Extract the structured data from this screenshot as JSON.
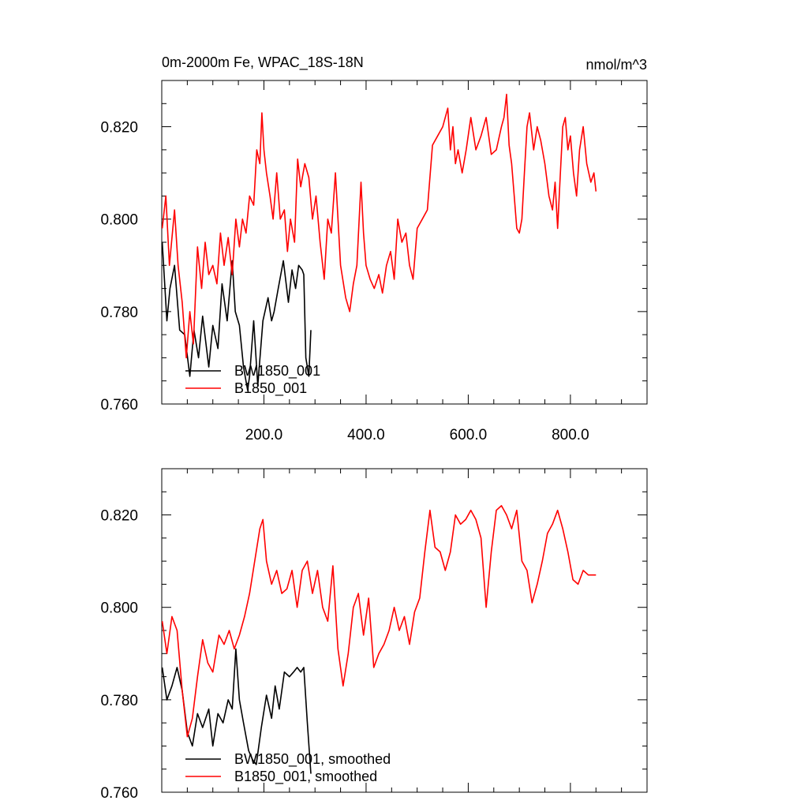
{
  "chart_data": [
    {
      "type": "line",
      "title": "0m-2000m Fe, WPAC_18S-18N",
      "units": "nmol/m^3",
      "xlabel": "",
      "ylabel": "",
      "xlim": [
        0,
        950
      ],
      "ylim": [
        0.76,
        0.83
      ],
      "x_ticks": [
        "200.0",
        "400.0",
        "600.0",
        "800.0"
      ],
      "y_ticks": [
        "0.760",
        "0.780",
        "0.800",
        "0.820"
      ],
      "legend_position": "bottom-left",
      "series": [
        {
          "name": "BW1850_001",
          "color": "#000000",
          "x": [
            1,
            10,
            16,
            25,
            35,
            45,
            55,
            63,
            72,
            80,
            92,
            100,
            110,
            118,
            128,
            138,
            144,
            152,
            160,
            168,
            172,
            180,
            188,
            198,
            208,
            215,
            220,
            228,
            238,
            248,
            255,
            262,
            268,
            275,
            278,
            282,
            288,
            292
          ],
          "y": [
            0.795,
            0.778,
            0.785,
            0.79,
            0.776,
            0.775,
            0.766,
            0.776,
            0.77,
            0.779,
            0.768,
            0.777,
            0.772,
            0.786,
            0.778,
            0.791,
            0.78,
            0.777,
            0.768,
            0.763,
            0.766,
            0.778,
            0.764,
            0.778,
            0.783,
            0.778,
            0.78,
            0.785,
            0.791,
            0.782,
            0.789,
            0.785,
            0.79,
            0.789,
            0.788,
            0.77,
            0.766,
            0.776
          ]
        },
        {
          "name": "B1850_001",
          "color": "#ff0000",
          "x": [
            1,
            8,
            15,
            25,
            32,
            40,
            48,
            55,
            62,
            70,
            78,
            85,
            92,
            100,
            108,
            115,
            122,
            130,
            138,
            145,
            152,
            158,
            165,
            172,
            180,
            186,
            192,
            196,
            200,
            205,
            212,
            218,
            225,
            232,
            240,
            246,
            252,
            260,
            266,
            272,
            280,
            288,
            295,
            302,
            310,
            318,
            325,
            332,
            340,
            350,
            360,
            368,
            375,
            382,
            390,
            395,
            400,
            408,
            416,
            425,
            432,
            440,
            448,
            455,
            462,
            470,
            478,
            485,
            492,
            500,
            510,
            520,
            530,
            540,
            550,
            560,
            565,
            570,
            575,
            580,
            588,
            596,
            605,
            615,
            625,
            635,
            645,
            655,
            665,
            670,
            675,
            680,
            685,
            690,
            695,
            700,
            705,
            710,
            715,
            720,
            728,
            735,
            742,
            750,
            758,
            765,
            770,
            775,
            780,
            785,
            790,
            795,
            800,
            806,
            812,
            818,
            825,
            832,
            840,
            846,
            850
          ],
          "y": [
            0.798,
            0.805,
            0.79,
            0.802,
            0.79,
            0.782,
            0.77,
            0.78,
            0.773,
            0.794,
            0.785,
            0.795,
            0.788,
            0.79,
            0.786,
            0.797,
            0.79,
            0.796,
            0.788,
            0.8,
            0.794,
            0.8,
            0.797,
            0.805,
            0.803,
            0.815,
            0.812,
            0.823,
            0.815,
            0.81,
            0.805,
            0.8,
            0.81,
            0.8,
            0.802,
            0.793,
            0.8,
            0.795,
            0.813,
            0.807,
            0.812,
            0.809,
            0.8,
            0.805,
            0.795,
            0.787,
            0.8,
            0.797,
            0.81,
            0.79,
            0.783,
            0.78,
            0.786,
            0.79,
            0.808,
            0.797,
            0.79,
            0.787,
            0.785,
            0.788,
            0.784,
            0.79,
            0.793,
            0.787,
            0.8,
            0.795,
            0.797,
            0.79,
            0.787,
            0.798,
            0.8,
            0.802,
            0.816,
            0.818,
            0.82,
            0.824,
            0.815,
            0.82,
            0.812,
            0.815,
            0.81,
            0.815,
            0.822,
            0.815,
            0.818,
            0.822,
            0.814,
            0.815,
            0.82,
            0.822,
            0.827,
            0.816,
            0.812,
            0.805,
            0.798,
            0.797,
            0.8,
            0.81,
            0.82,
            0.823,
            0.815,
            0.82,
            0.817,
            0.812,
            0.805,
            0.802,
            0.808,
            0.798,
            0.809,
            0.82,
            0.822,
            0.815,
            0.818,
            0.81,
            0.805,
            0.815,
            0.82,
            0.812,
            0.808,
            0.81,
            0.806
          ]
        }
      ]
    },
    {
      "type": "line",
      "title": "",
      "xlabel": "",
      "ylabel": "",
      "xlim": [
        0,
        950
      ],
      "ylim": [
        0.76,
        0.83
      ],
      "x_ticks": [],
      "y_ticks": [
        "0.760",
        "0.780",
        "0.800",
        "0.820"
      ],
      "legend_position": "bottom-left",
      "series": [
        {
          "name": "BW1850_001, smoothed",
          "color": "#000000",
          "x": [
            1,
            10,
            20,
            30,
            40,
            50,
            60,
            70,
            80,
            92,
            100,
            110,
            120,
            130,
            138,
            145,
            152,
            160,
            170,
            178,
            185,
            195,
            205,
            215,
            222,
            230,
            240,
            250,
            258,
            265,
            272,
            278,
            285,
            292
          ],
          "y": [
            0.787,
            0.78,
            0.783,
            0.787,
            0.782,
            0.773,
            0.77,
            0.777,
            0.774,
            0.778,
            0.77,
            0.777,
            0.775,
            0.78,
            0.778,
            0.791,
            0.78,
            0.775,
            0.769,
            0.767,
            0.766,
            0.774,
            0.781,
            0.776,
            0.783,
            0.778,
            0.786,
            0.785,
            0.786,
            0.787,
            0.786,
            0.787,
            0.775,
            0.764
          ]
        },
        {
          "name": "B1850_001, smoothed",
          "color": "#ff0000",
          "x": [
            1,
            10,
            20,
            30,
            40,
            50,
            60,
            70,
            80,
            90,
            100,
            112,
            122,
            132,
            142,
            152,
            162,
            172,
            182,
            192,
            198,
            205,
            215,
            225,
            235,
            245,
            255,
            265,
            275,
            285,
            295,
            305,
            315,
            325,
            335,
            345,
            355,
            365,
            375,
            385,
            395,
            405,
            415,
            425,
            435,
            445,
            455,
            465,
            475,
            485,
            495,
            505,
            515,
            525,
            535,
            545,
            555,
            565,
            575,
            585,
            595,
            605,
            615,
            625,
            635,
            645,
            655,
            665,
            675,
            685,
            695,
            705,
            715,
            725,
            735,
            745,
            755,
            765,
            775,
            785,
            795,
            805,
            815,
            825,
            835,
            845,
            850
          ],
          "y": [
            0.797,
            0.79,
            0.798,
            0.795,
            0.782,
            0.772,
            0.776,
            0.785,
            0.793,
            0.788,
            0.786,
            0.794,
            0.792,
            0.795,
            0.791,
            0.794,
            0.798,
            0.803,
            0.81,
            0.817,
            0.819,
            0.81,
            0.805,
            0.808,
            0.803,
            0.804,
            0.808,
            0.8,
            0.808,
            0.81,
            0.803,
            0.808,
            0.8,
            0.797,
            0.809,
            0.791,
            0.783,
            0.79,
            0.8,
            0.803,
            0.794,
            0.802,
            0.787,
            0.79,
            0.792,
            0.795,
            0.8,
            0.795,
            0.798,
            0.792,
            0.799,
            0.802,
            0.812,
            0.821,
            0.813,
            0.812,
            0.808,
            0.812,
            0.82,
            0.818,
            0.819,
            0.821,
            0.819,
            0.815,
            0.8,
            0.812,
            0.821,
            0.822,
            0.82,
            0.817,
            0.821,
            0.81,
            0.808,
            0.801,
            0.805,
            0.81,
            0.816,
            0.818,
            0.821,
            0.817,
            0.812,
            0.806,
            0.805,
            0.808,
            0.807,
            0.807,
            0.807
          ]
        }
      ]
    }
  ]
}
